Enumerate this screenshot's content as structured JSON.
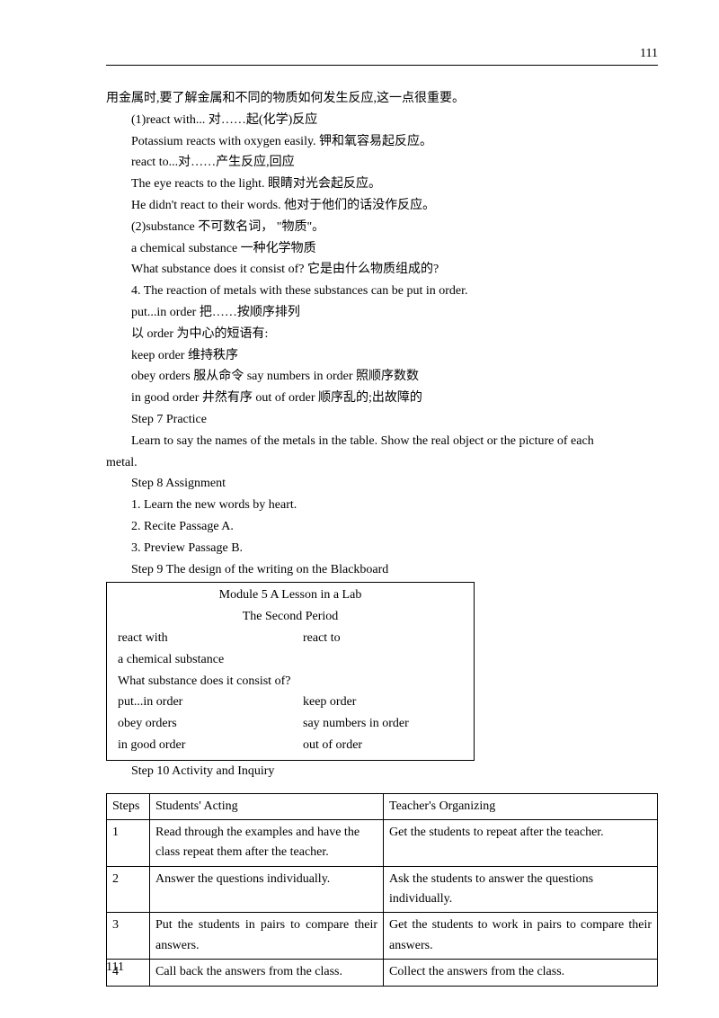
{
  "pageNumberTop": "111",
  "pageNumberBottom": "111",
  "lines": {
    "l1": "用金属时,要了解金属和不同的物质如何发生反应,这一点很重要。",
    "l2": "(1)react with...  对……起(化学)反应",
    "l3": "Potassium reacts with oxygen easily.  钾和氧容易起反应。",
    "l4": "react to...对……产生反应,回应",
    "l5": "The eye reacts to the light.    眼睛对光会起反应。",
    "l6": "He didn't react to their words.    他对于他们的话没作反应。",
    "l7": "(2)substance 不可数名词， \"物质\"。",
    "l8": "a chemical substance 一种化学物质",
    "l9": "What substance does it consist of?    它是由什么物质组成的?",
    "l10": "4.    The reaction of metals with these substances can be put in order.",
    "l11": "put...in order  把……按顺序排列",
    "l12": "以 order 为中心的短语有:",
    "l13": "keep order  维持秩序",
    "l14": "obey orders  服从命令    say numbers in order  照顺序数数",
    "l15": "in good order  井然有序    out of order  顺序乱的;出故障的",
    "l16": "Step 7 Practice",
    "l17a": "Learn to say the names of the metals in the table. Show the real object or the picture of each",
    "l17b": "metal.",
    "l18": "Step 8 Assignment",
    "l19": "1.    Learn the new words by heart.",
    "l20": "2.    Recite Passage A.",
    "l21": "3.    Preview Passage B.",
    "l22": "Step 9 The design of the writing on the Blackboard",
    "l23": "Step 10 Activity and Inquiry"
  },
  "box": {
    "title1": "Module 5    A Lesson in a Lab",
    "title2": "The Second Period",
    "r1l": "react with",
    "r1r": "react to",
    "r2": "a chemical substance",
    "r3": "What substance does it consist of?",
    "r4l": "put...in order",
    "r4r": "keep order",
    "r5l": "obey orders",
    "r5r": "say numbers in order",
    "r6l": "in good order",
    "r6r": "out of order"
  },
  "table": {
    "h1": "Steps",
    "h2": "Students' Acting",
    "h3": "Teacher's Organizing",
    "r1c1": "1",
    "r1c2": "Read through the examples and have the class repeat them after the teacher.",
    "r1c3": "Get the students to repeat after the teacher.",
    "r2c1": "2",
    "r2c2": "Answer the questions individually.",
    "r2c3": "Ask the students to answer the questions individually.",
    "r3c1": "3",
    "r3c2": "Put the students in pairs to compare their answers.",
    "r3c3": "Get the students to work in pairs to compare their answers.",
    "r4c1": "4",
    "r4c2": "Call back the answers from the class.",
    "r4c3": "Collect the answers from the class."
  }
}
